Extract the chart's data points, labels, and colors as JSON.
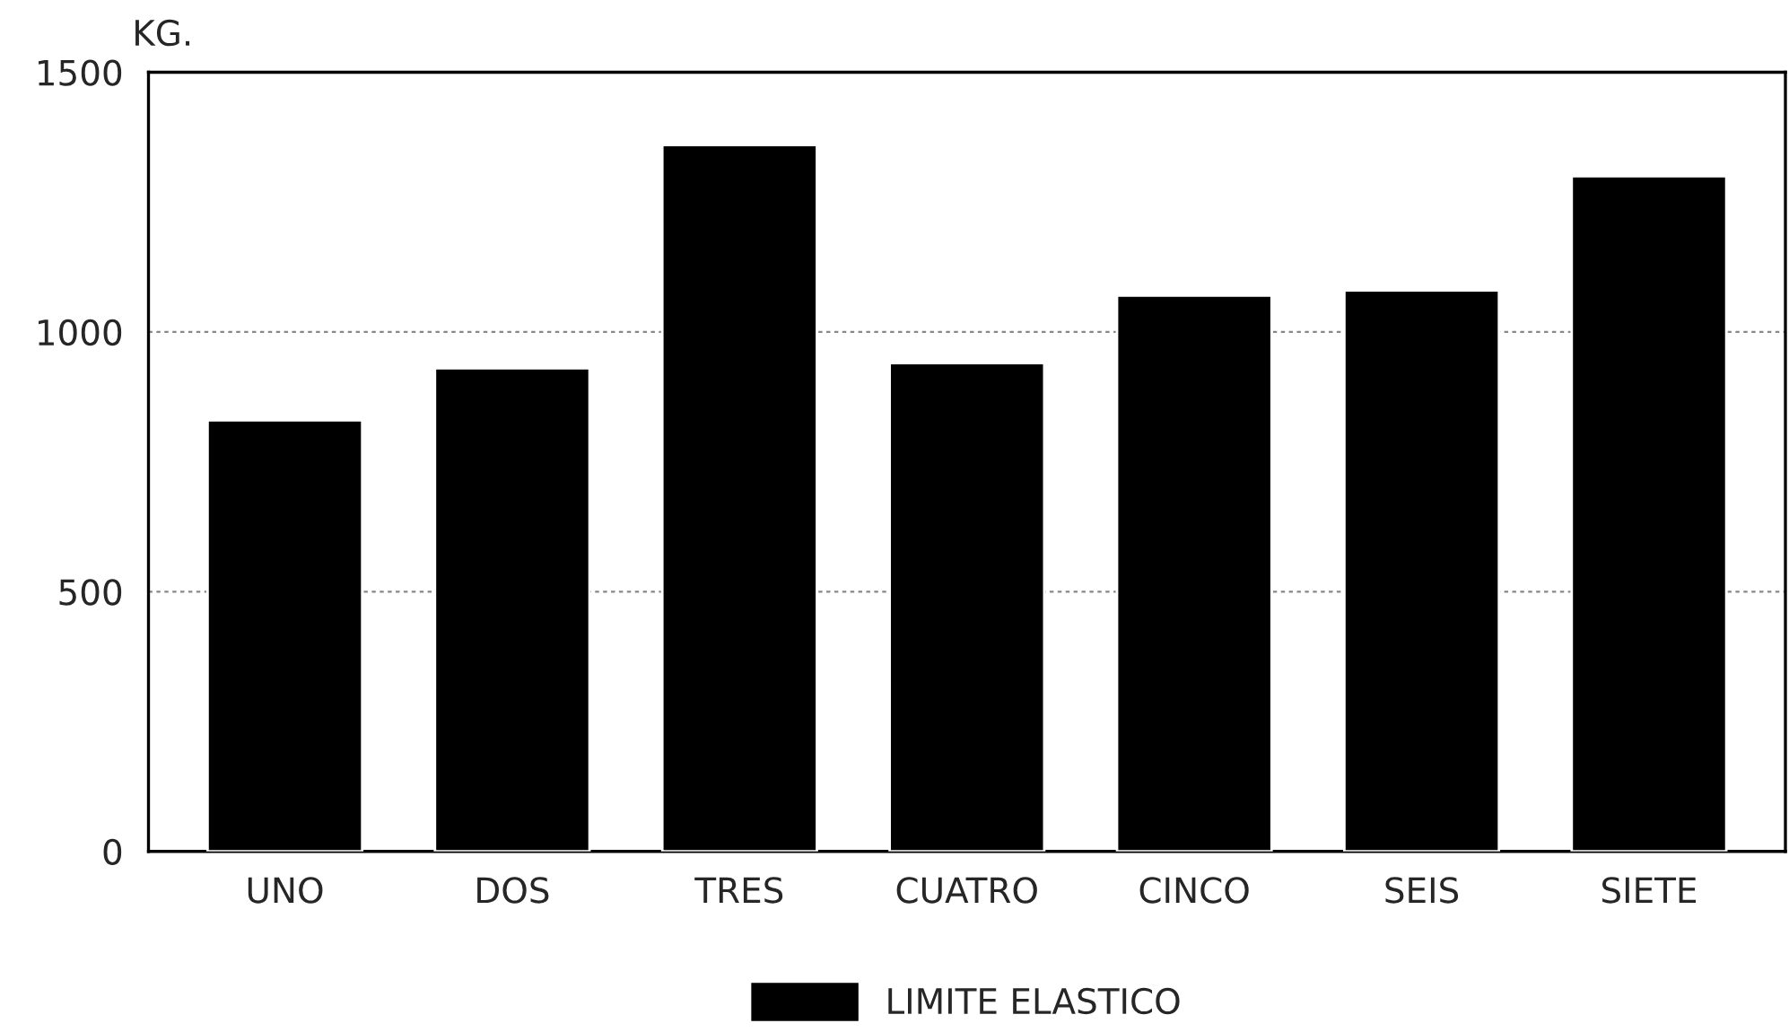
{
  "chart_data": {
    "type": "bar",
    "ylabel": "KG.",
    "categories": [
      "UNO",
      "DOS",
      "TRES",
      "CUATRO",
      "CINCO",
      "SEIS",
      "SIETE"
    ],
    "series": [
      {
        "name": "LIMITE ELASTICO",
        "color": "#000000",
        "values": [
          830,
          930,
          1360,
          940,
          1070,
          1080,
          1300
        ]
      }
    ],
    "ylim": [
      0,
      1500
    ],
    "yticks": [
      0,
      500,
      1000,
      1500
    ],
    "grid": "y",
    "legend": "bottom"
  }
}
